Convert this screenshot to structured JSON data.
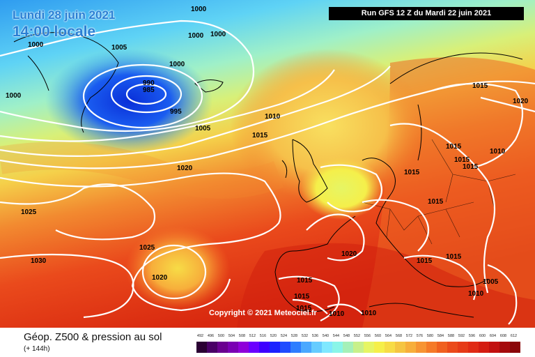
{
  "header": {
    "date": "Lundi 28 juin 2021",
    "time": "14:00 locale",
    "run": "Run GFS 12 Z du Mardi 22 juin 2021"
  },
  "copyright": "Copyright © 2021 Meteociel.fr",
  "footer": {
    "title": "Géop. Z500 & pression au sol",
    "subtitle": "(+ 144h)"
  },
  "legend": {
    "labels": [
      "492",
      "496",
      "500",
      "504",
      "508",
      "512",
      "516",
      "520",
      "524",
      "528",
      "532",
      "536",
      "540",
      "544",
      "548",
      "552",
      "556",
      "560",
      "564",
      "568",
      "572",
      "576",
      "580",
      "584",
      "588",
      "592",
      "596",
      "600",
      "604",
      "608",
      "612"
    ],
    "colors": [
      "#2b0033",
      "#4a0066",
      "#6a008f",
      "#7a00b3",
      "#8f00d9",
      "#6a00ff",
      "#3d00ff",
      "#1a22ff",
      "#1f4cff",
      "#2e7dff",
      "#4aa8ff",
      "#66ccff",
      "#7fe8ff",
      "#8af5e8",
      "#a5f0b8",
      "#c8f08a",
      "#e6f564",
      "#f5ef4a",
      "#f7dc46",
      "#f5c542",
      "#f7ae3b",
      "#f79433",
      "#f57a28",
      "#f0601f",
      "#eb4a1a",
      "#e63a17",
      "#e02a14",
      "#d41c11",
      "#c2100f",
      "#a50a0c",
      "#8a0609"
    ]
  },
  "isobars": [
    {
      "label": "1000"
    },
    {
      "label": "1000"
    },
    {
      "label": "1000"
    },
    {
      "label": "1000"
    },
    {
      "label": "1000"
    },
    {
      "label": "1000"
    },
    {
      "label": "1005"
    },
    {
      "label": "990"
    },
    {
      "label": "985"
    },
    {
      "label": "995"
    },
    {
      "label": "1005"
    },
    {
      "label": "1010"
    },
    {
      "label": "1015"
    },
    {
      "label": "1020"
    },
    {
      "label": "1025"
    },
    {
      "label": "1030"
    },
    {
      "label": "1025"
    },
    {
      "label": "1020"
    },
    {
      "label": "1015"
    },
    {
      "label": "1020"
    },
    {
      "label": "1015"
    },
    {
      "label": "1015"
    },
    {
      "label": "1015"
    },
    {
      "label": "1015"
    },
    {
      "label": "1015"
    },
    {
      "label": "1015"
    },
    {
      "label": "1010"
    },
    {
      "label": "1015"
    },
    {
      "label": "1020"
    },
    {
      "label": "1015"
    },
    {
      "label": "1015"
    },
    {
      "label": "1015"
    },
    {
      "label": "1010"
    },
    {
      "label": "1005"
    },
    {
      "label": "1010"
    },
    {
      "label": "1010"
    }
  ]
}
